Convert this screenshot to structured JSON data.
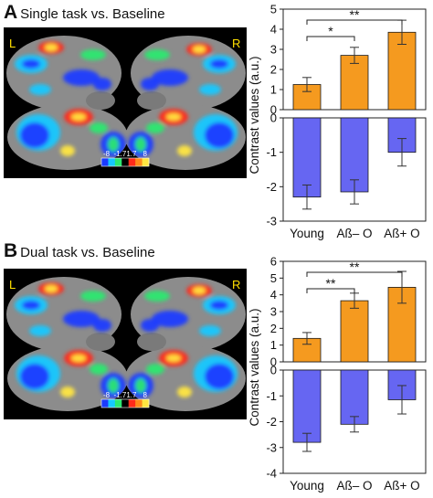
{
  "colors": {
    "bar_positive": "#F59A1F",
    "bar_negative": "#6666F2",
    "bar_outline": "#1a1a1a",
    "brain_background": "#000000",
    "brain_surface": "#8C8C8C",
    "hemisphere_label": "#FFE000"
  },
  "colorbar_colors": [
    "#1B3BFF",
    "#16C8FF",
    "#2BE870",
    "#000000",
    "#FF2A1A",
    "#FF8A1A",
    "#FFE640"
  ],
  "panels": [
    {
      "letter": "A",
      "title": "Single task vs. Baseline",
      "brain": {
        "left_label": "L",
        "right_label": "R",
        "colorbar_ticks": [
          "-8",
          "-1.71.7",
          "8"
        ]
      },
      "chart_data": {
        "type": "bar",
        "categories": [
          "Young",
          "Aß– O",
          "Aß+ O"
        ],
        "ylabel": "Contrast values (a.u.)",
        "upper": {
          "values": [
            1.25,
            2.7,
            3.85
          ],
          "errors": [
            0.35,
            0.4,
            0.6
          ],
          "ylim": [
            0,
            5
          ],
          "yticks": [
            "0",
            "1",
            "2",
            "3",
            "4",
            "5"
          ]
        },
        "lower": {
          "values": [
            -2.3,
            -2.15,
            -1.0
          ],
          "errors": [
            0.35,
            0.35,
            0.4
          ],
          "ylim": [
            -3,
            0
          ],
          "yticks": [
            "-3",
            "-2",
            "-1",
            "0"
          ]
        },
        "significance": [
          {
            "from": 0,
            "to": 1,
            "label": "*"
          },
          {
            "from": 0,
            "to": 2,
            "label": "**"
          }
        ]
      }
    },
    {
      "letter": "B",
      "title": "Dual task vs. Baseline",
      "brain": {
        "left_label": "L",
        "right_label": "R",
        "colorbar_ticks": [
          "-8",
          "-1.71.7",
          "8"
        ]
      },
      "chart_data": {
        "type": "bar",
        "categories": [
          "Young",
          "Aß– O",
          "Aß+ O"
        ],
        "ylabel": "Contrast values (a.u.)",
        "upper": {
          "values": [
            1.4,
            3.65,
            4.45
          ],
          "errors": [
            0.35,
            0.45,
            0.95
          ],
          "ylim": [
            0,
            6
          ],
          "yticks": [
            "0",
            "1",
            "2",
            "3",
            "4",
            "5",
            "6"
          ]
        },
        "lower": {
          "values": [
            -2.8,
            -2.1,
            -1.15
          ],
          "errors": [
            0.35,
            0.3,
            0.55
          ],
          "ylim": [
            -4,
            0
          ],
          "yticks": [
            "-4",
            "-3",
            "-2",
            "-1",
            "0"
          ]
        },
        "significance": [
          {
            "from": 0,
            "to": 1,
            "label": "**"
          },
          {
            "from": 0,
            "to": 2,
            "label": "**"
          }
        ]
      }
    }
  ]
}
